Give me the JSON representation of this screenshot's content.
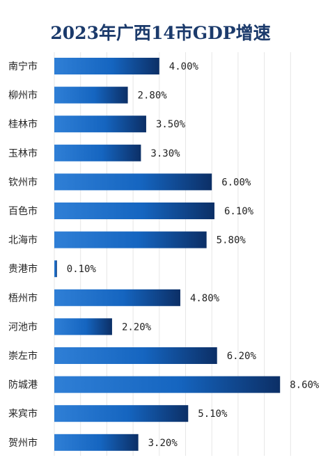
{
  "chart_data": {
    "type": "bar",
    "orientation": "horizontal",
    "title": "2023年广西14市GDP增速",
    "categories": [
      "南宁市",
      "柳州市",
      "桂林市",
      "玉林市",
      "钦州市",
      "百色市",
      "北海市",
      "贵港市",
      "梧州市",
      "河池市",
      "崇左市",
      "防城港",
      "来宾市",
      "贺州市"
    ],
    "values": [
      4.0,
      2.8,
      3.5,
      3.3,
      6.0,
      6.1,
      5.8,
      0.1,
      4.8,
      2.2,
      6.2,
      8.6,
      5.1,
      3.2
    ],
    "value_labels": [
      "4.00%",
      "2.80%",
      "3.50%",
      "3.30%",
      "6.00%",
      "6.10%",
      "5.80%",
      "0.10%",
      "4.80%",
      "2.20%",
      "6.20%",
      "8.60%",
      "5.10%",
      "3.20%"
    ],
    "unit": "%",
    "xlim": [
      0,
      9
    ],
    "grid": true,
    "colors": {
      "bar_dark": "#0c2f66",
      "bar_mid": "#1565c0",
      "bar_light": "#2f7fd6",
      "title": "#1b3a6b",
      "grid": "#e6e6e6"
    }
  }
}
